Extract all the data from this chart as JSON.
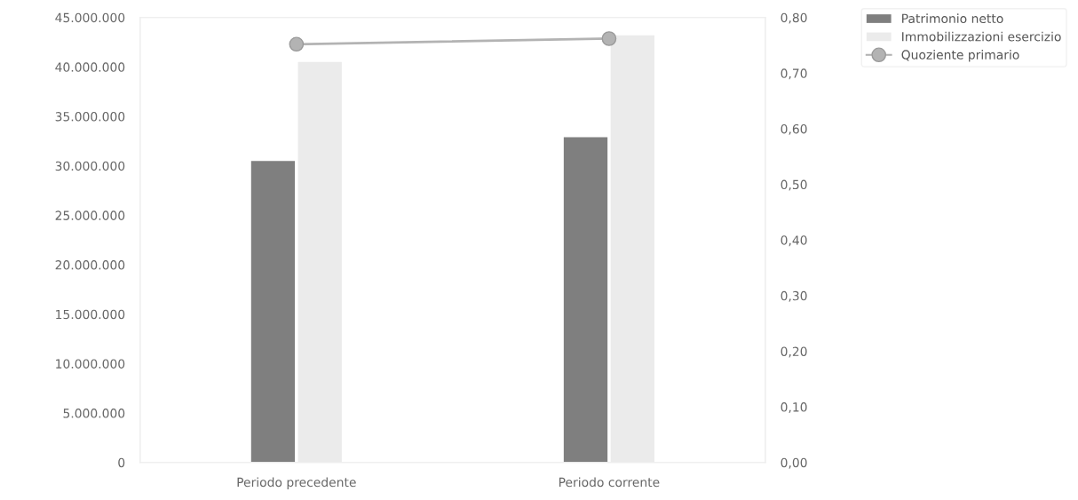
{
  "chart_data": {
    "type": "bar",
    "categories": [
      "Periodo precedente",
      "Periodo corrente"
    ],
    "series": [
      {
        "name": "Patrimonio netto",
        "color": "#7f7f7f",
        "values": [
          30500000,
          32900000
        ]
      },
      {
        "name": "Immobilizzazioni esercizio",
        "color": "#ebebeb",
        "values": [
          40500000,
          43200000
        ]
      },
      {
        "name": "Quoziente primario",
        "type": "line",
        "axis": "y2",
        "color": "#b3b3b3",
        "marker": "circle",
        "values": [
          0.752,
          0.762
        ]
      }
    ],
    "ylim": [
      0,
      45000000
    ],
    "yticks": [
      0,
      {
        "value": 5000000,
        "label": "5.000.000"
      },
      {
        "value": 10000000,
        "label": "10.000.000"
      },
      {
        "value": 15000000,
        "label": "15.000.000"
      },
      {
        "value": 20000000,
        "label": "20.000.000"
      },
      {
        "value": 25000000,
        "label": "25.000.000"
      },
      {
        "value": 30000000,
        "label": "30.000.000"
      },
      {
        "value": 35000000,
        "label": "35.000.000"
      },
      {
        "value": 40000000,
        "label": "40.000.000"
      },
      {
        "value": 45000000,
        "label": "45.000.000"
      }
    ],
    "y2lim": [
      0,
      0.8
    ],
    "y2ticks": [
      {
        "value": 0,
        "label": "0,00"
      },
      {
        "value": 0.1,
        "label": "0,10"
      },
      {
        "value": 0.2,
        "label": "0,20"
      },
      {
        "value": 0.3,
        "label": "0,30"
      },
      {
        "value": 0.4,
        "label": "0,40"
      },
      {
        "value": 0.5,
        "label": "0,50"
      },
      {
        "value": 0.6,
        "label": "0,60"
      },
      {
        "value": 0.7,
        "label": "0,70"
      },
      {
        "value": 0.8,
        "label": "0,80"
      }
    ],
    "grid": false,
    "legend": "top right"
  }
}
